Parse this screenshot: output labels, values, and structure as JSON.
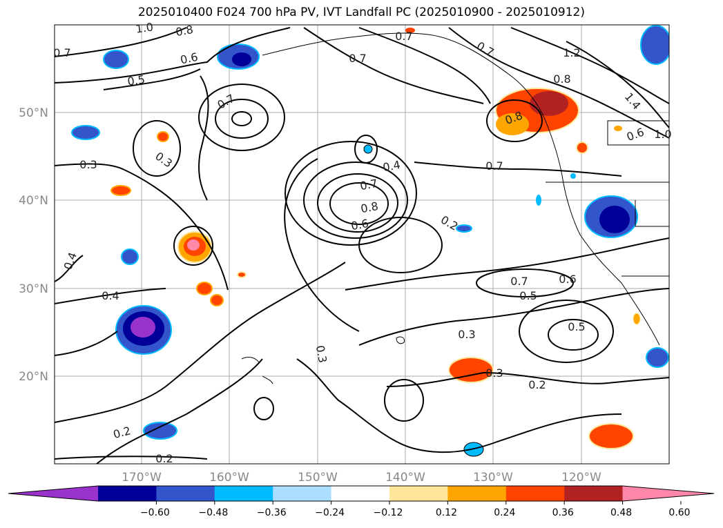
{
  "title": "2025010400 F024 700 hPa PV, IVT Landfall PC (2025010900 - 2025010912)",
  "axes": {
    "lat_labels": [
      "50°N",
      "40°N",
      "30°N",
      "20°N"
    ],
    "lon_labels": [
      "170°W",
      "160°W",
      "150°W",
      "140°W",
      "130°W",
      "120°W"
    ]
  },
  "colorbar": {
    "ticks": [
      "−0.60",
      "−0.48",
      "−0.36",
      "−0.24",
      "−0.12",
      "0.12",
      "0.24",
      "0.36",
      "0.48",
      "0.60"
    ],
    "colors": [
      "#9933cc",
      "#000099",
      "#3355cc",
      "#00bbff",
      "#aaddff",
      "#ffffff",
      "#ffe699",
      "#ffa500",
      "#ff4400",
      "#b22222",
      "#ff88aa"
    ]
  },
  "contour_labels": [
    "1.0",
    "0.8",
    "0.7",
    "0.6",
    "0.5",
    "0.7",
    "0.3",
    "0.3",
    "0.4",
    "0.4",
    "0.2",
    "0.2",
    "0.7",
    "0.7",
    "0.4",
    "0.7",
    "0.8",
    "0.6",
    "0.2",
    "0.3",
    "0.7",
    "0.7",
    "0.8",
    "1.2",
    "1.4",
    "0.8",
    "0.7",
    "0.6",
    "0.5",
    "0.3",
    "0.5",
    "0.3",
    "0.2",
    "0.6",
    "1.0"
  ]
}
